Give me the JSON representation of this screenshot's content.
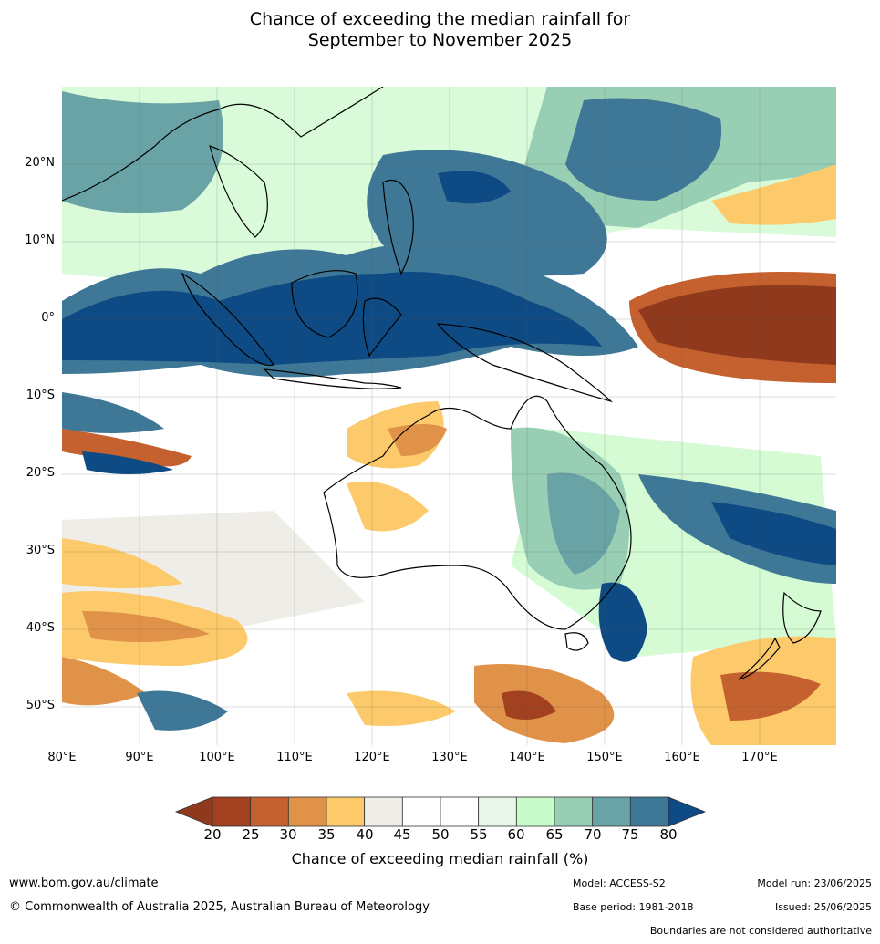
{
  "title_line1": "Chance of exceeding the median rainfall for",
  "title_line2": "September to November 2025",
  "lat_labels": [
    "20°N",
    "10°N",
    "0°",
    "10°S",
    "20°S",
    "30°S",
    "40°S",
    "50°S"
  ],
  "lon_labels": [
    "80°E",
    "90°E",
    "100°E",
    "110°E",
    "120°E",
    "130°E",
    "140°E",
    "150°E",
    "160°E",
    "170°E"
  ],
  "colorbar": {
    "ticks": [
      "20",
      "25",
      "30",
      "35",
      "40",
      "45",
      "50",
      "55",
      "60",
      "65",
      "70",
      "75",
      "80"
    ],
    "colors": [
      "#a2401f",
      "#c5612f",
      "#df9248",
      "#fdca6b",
      "#efede8",
      "#ffffff",
      "#ffffff",
      "#eaf6ea",
      "#c9fac9",
      "#98cfb4",
      "#6aa3a6",
      "#3f7897"
    ],
    "under_color": "#8f3a1d",
    "over_color": "#0e4a83",
    "label": "Chance of exceeding median rainfall (%)"
  },
  "footer": {
    "website": "www.bom.gov.au/climate",
    "copyright": "© Commonwealth of Australia 2025, Australian Bureau of Meteorology",
    "model": "Model: ACCESS-S2",
    "base_period": "Base period: 1981-2018",
    "model_run": "Model run: 23/06/2025",
    "issued": "Issued: 25/06/2025",
    "disclaimer": "Boundaries are not considered authoritative"
  }
}
